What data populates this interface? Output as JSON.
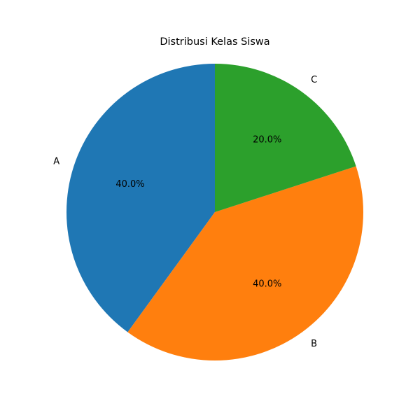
{
  "chart_data": {
    "type": "pie",
    "title": "Distribusi Kelas Siswa",
    "categories": [
      "A",
      "B",
      "C"
    ],
    "values": [
      40,
      40,
      20
    ],
    "percent_labels": [
      "40.0%",
      "40.0%",
      "20.0%"
    ],
    "colors": [
      "#1f77b4",
      "#ff7f0e",
      "#2ca02c"
    ],
    "start_angle_deg": 90,
    "direction": "counterclockwise"
  }
}
